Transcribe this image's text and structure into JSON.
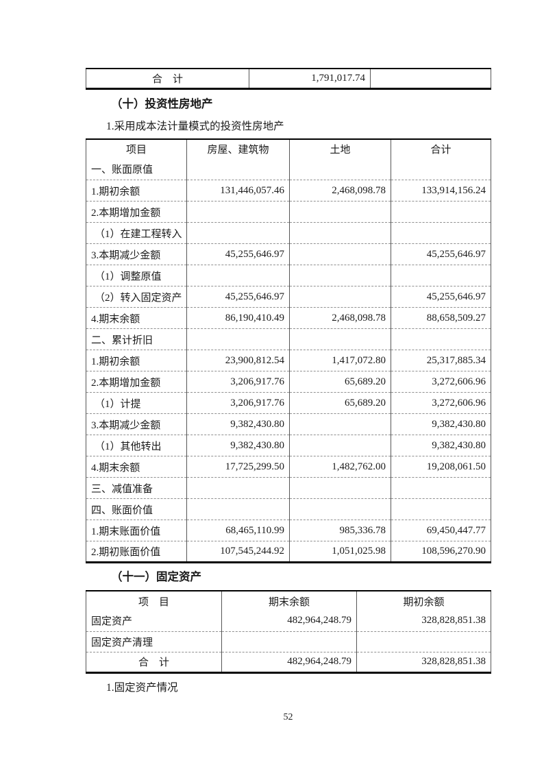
{
  "page_number": "52",
  "top_table": {
    "total_label": "合　计",
    "total_value": "1,791,017.74",
    "col3_value": ""
  },
  "section_10": {
    "heading": "（十）投资性房地产",
    "subheading": "1.采用成本法计量模式的投资性房地产",
    "table": {
      "headers": [
        "项目",
        "房屋、建筑物",
        "土地",
        "合计"
      ],
      "rows": [
        {
          "cells": [
            "一、账面原值",
            "",
            "",
            ""
          ]
        },
        {
          "cells": [
            "1.期初余额",
            "131,446,057.46",
            "2,468,098.78",
            "133,914,156.24"
          ]
        },
        {
          "cells": [
            "2.本期增加金额",
            "",
            "",
            ""
          ]
        },
        {
          "cells": [
            "（1）在建工程转入",
            "",
            "",
            ""
          ],
          "indent": true
        },
        {
          "cells": [
            "3.本期减少金额",
            "45,255,646.97",
            "",
            "45,255,646.97"
          ]
        },
        {
          "cells": [
            "（1）调整原值",
            "",
            "",
            ""
          ],
          "indent": true
        },
        {
          "cells": [
            "（2）转入固定资产",
            "45,255,646.97",
            "",
            "45,255,646.97"
          ],
          "indent": true
        },
        {
          "cells": [
            "4.期末余额",
            "86,190,410.49",
            "2,468,098.78",
            "88,658,509.27"
          ]
        },
        {
          "cells": [
            "二、累计折旧",
            "",
            "",
            ""
          ]
        },
        {
          "cells": [
            "1.期初余额",
            "23,900,812.54",
            "1,417,072.80",
            "25,317,885.34"
          ]
        },
        {
          "cells": [
            "2.本期增加金额",
            "3,206,917.76",
            "65,689.20",
            "3,272,606.96"
          ]
        },
        {
          "cells": [
            "（1）计提",
            "3,206,917.76",
            "65,689.20",
            "3,272,606.96"
          ],
          "indent": true
        },
        {
          "cells": [
            "3.本期减少金额",
            "9,382,430.80",
            "",
            "9,382,430.80"
          ]
        },
        {
          "cells": [
            "（1）其他转出",
            "9,382,430.80",
            "",
            "9,382,430.80"
          ],
          "indent": true
        },
        {
          "cells": [
            "4.期末余额",
            "17,725,299.50",
            "1,482,762.00",
            "19,208,061.50"
          ]
        },
        {
          "cells": [
            "三、减值准备",
            "",
            "",
            ""
          ]
        },
        {
          "cells": [
            "四、账面价值",
            "",
            "",
            ""
          ]
        },
        {
          "cells": [
            "1.期末账面价值",
            "68,465,110.99",
            "985,336.78",
            "69,450,447.77"
          ]
        },
        {
          "cells": [
            "2.期初账面价值",
            "107,545,244.92",
            "1,051,025.98",
            "108,596,270.90"
          ]
        }
      ]
    }
  },
  "section_11": {
    "heading": "（十一）固定资产",
    "table": {
      "headers": [
        "项　目",
        "期末余额",
        "期初余额"
      ],
      "rows": [
        {
          "cells": [
            "固定资产",
            "482,964,248.79",
            "328,828,851.38"
          ]
        },
        {
          "cells": [
            "固定资产清理",
            "",
            ""
          ]
        },
        {
          "cells": [
            "合　计",
            "482,964,248.79",
            "328,828,851.38"
          ],
          "total": true
        }
      ]
    },
    "note": "1.固定资产情况"
  }
}
